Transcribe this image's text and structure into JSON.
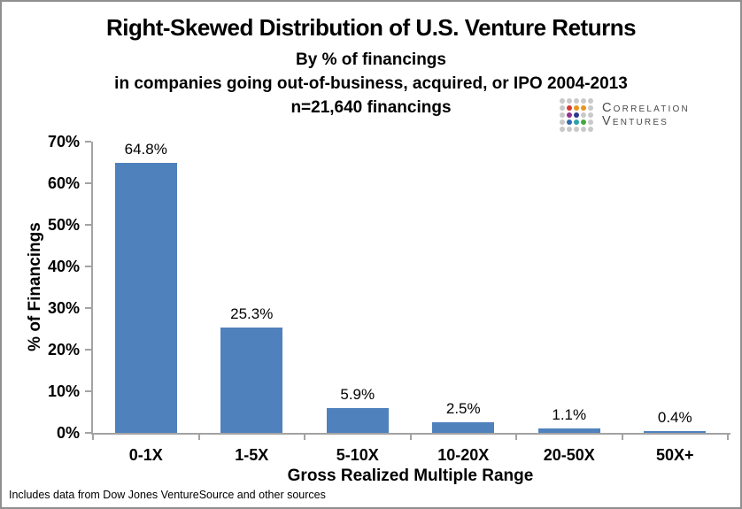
{
  "window": {
    "background": "#ffffff",
    "border_color": "#8f8f8f"
  },
  "logo": {
    "line1": "Correlation",
    "line2": "Ventures",
    "text_color": "#4a4a4a",
    "dot_grid": [
      [
        "#c9c9c9",
        "#c9c9c9",
        "#c9c9c9",
        "#c9c9c9",
        "#c9c9c9"
      ],
      [
        "#c9c9c9",
        "#d43a32",
        "#e8951f",
        "#e8951f",
        "#c9c9c9"
      ],
      [
        "#c9c9c9",
        "#8d3393",
        "#2b3a8f",
        "#c9c9c9",
        "#c9c9c9"
      ],
      [
        "#c9c9c9",
        "#3069b2",
        "#2aa4ab",
        "#47a63d",
        "#c9c9c9"
      ],
      [
        "#c9c9c9",
        "#c9c9c9",
        "#c9c9c9",
        "#c9c9c9",
        "#c9c9c9"
      ]
    ]
  },
  "chart_data": {
    "type": "bar",
    "title": "Right-Skewed Distribution of U.S. Venture Returns",
    "subtitle_lines": [
      "By % of financings",
      "in companies going out-of-business, acquired, or IPO 2004-2013",
      "n=21,640 financings"
    ],
    "categories": [
      "0-1X",
      "1-5X",
      "5-10X",
      "10-20X",
      "20-50X",
      "50X+"
    ],
    "values": [
      64.8,
      25.3,
      5.9,
      2.5,
      1.1,
      0.4
    ],
    "value_labels": [
      "64.8%",
      "25.3%",
      "5.9%",
      "2.5%",
      "1.1%",
      "0.4%"
    ],
    "xlabel": "Gross Realized Multiple Range",
    "ylabel": "% of Financings",
    "ylim": [
      0,
      70
    ],
    "ytick_interval": 10,
    "ytick_labels": [
      "0%",
      "10%",
      "20%",
      "30%",
      "40%",
      "50%",
      "60%",
      "70%"
    ],
    "grid": false,
    "legend": "none",
    "bar_color": "#4f81bd",
    "axis_color": "#a3a3a3"
  },
  "footer": {
    "source_note": "Includes data from Dow Jones VentureSource and other sources"
  }
}
